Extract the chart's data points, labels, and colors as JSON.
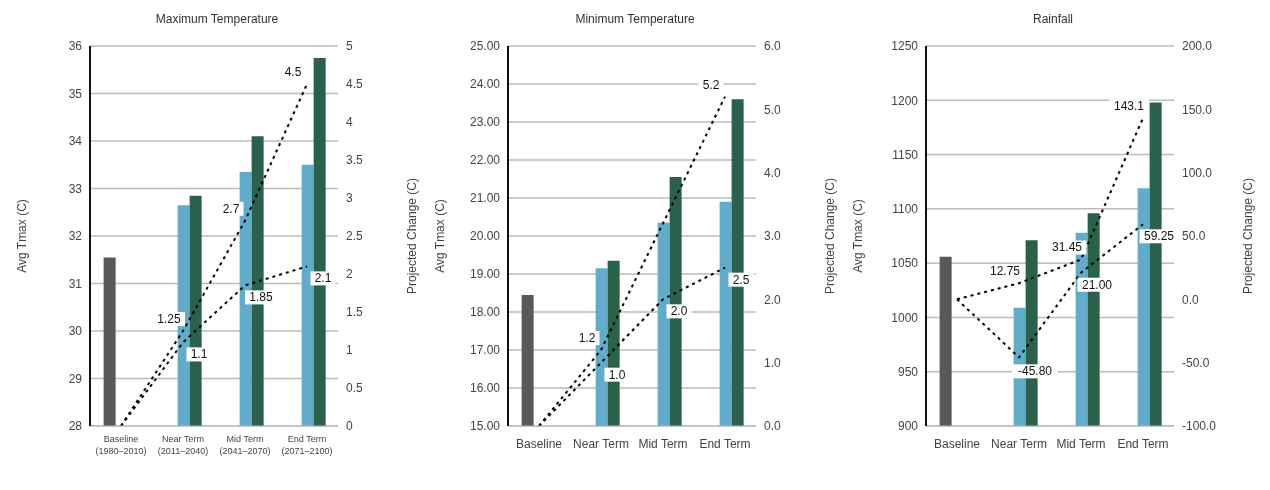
{
  "chart_data": [
    {
      "type": "bar",
      "title": "Maximum Temperature",
      "ylabel": "Avg Tmax (C)",
      "y2label": "Projected Change (C)",
      "categories": [
        "Baseline\n(1980–2010)",
        "Near Term\n(2011–2040)",
        "Mid Term\n(2041–2070)",
        "End Term\n(2071–2100)"
      ],
      "ylim": [
        28,
        36
      ],
      "yticks": [
        28,
        29,
        30,
        31,
        32,
        33,
        34,
        35,
        36
      ],
      "y2lim": [
        0,
        5
      ],
      "y2ticks": [
        0,
        0.5,
        1,
        1.5,
        2,
        2.5,
        3,
        3.5,
        4,
        4.5,
        5
      ],
      "grid": "y",
      "legend": false,
      "marker": "none",
      "line_style": "dashed",
      "series": [
        {
          "color": "#595959",
          "values": [
            31.55,
            null,
            null,
            null
          ]
        },
        {
          "color": "#62abc9",
          "values": [
            null,
            32.65,
            33.35,
            33.5
          ]
        },
        {
          "color": "#2b614a",
          "values": [
            null,
            32.85,
            34.1,
            35.75
          ]
        },
        {
          "type": "line",
          "axis": "y2",
          "color": "#000000",
          "values": [
            0,
            1.25,
            2.7,
            4.5
          ],
          "value_labels": [
            null,
            "1.25",
            "2.7",
            "4.5"
          ]
        },
        {
          "type": "line",
          "axis": "y2",
          "color": "#000000",
          "values": [
            0,
            1.1,
            1.85,
            2.1
          ],
          "value_labels": [
            null,
            "1.1",
            "1.85",
            "2.1"
          ]
        }
      ]
    },
    {
      "type": "bar",
      "title": "Minimum Temperature",
      "ylabel": "Avg Tmax (C)",
      "y2label": "Projected Change (C)",
      "categories": [
        "Baseline",
        "Near Term",
        "Mid Term",
        "End Term"
      ],
      "ylim": [
        15,
        25
      ],
      "yticks": [
        {
          "value": 15,
          "label": "15.00"
        },
        {
          "value": 16,
          "label": "16.00"
        },
        {
          "value": 17,
          "label": "17.00"
        },
        {
          "value": 18,
          "label": "18.00"
        },
        {
          "value": 19,
          "label": "19.00"
        },
        {
          "value": 20,
          "label": "20.00"
        },
        {
          "value": 21,
          "label": "21.00"
        },
        {
          "value": 22,
          "label": "22.00"
        },
        {
          "value": 23,
          "label": "23.00"
        },
        {
          "value": 24,
          "label": "24.00"
        },
        {
          "value": 25,
          "label": "25.00"
        }
      ],
      "y2lim": [
        0,
        6
      ],
      "y2ticks": [
        {
          "value": 0,
          "label": "0.0"
        },
        {
          "value": 1,
          "label": "1.0"
        },
        {
          "value": 2,
          "label": "2.0"
        },
        {
          "value": 3,
          "label": "3.0"
        },
        {
          "value": 4,
          "label": "4.0"
        },
        {
          "value": 5,
          "label": "5.0"
        },
        {
          "value": 6,
          "label": "6.0"
        }
      ],
      "grid": "y",
      "legend": false,
      "marker": "none",
      "line_style": "dashed",
      "series": [
        {
          "color": "#595959",
          "values": [
            18.45,
            null,
            null,
            null
          ]
        },
        {
          "color": "#62abc9",
          "values": [
            null,
            19.15,
            20.35,
            20.9
          ]
        },
        {
          "color": "#2b614a",
          "values": [
            null,
            19.35,
            21.55,
            23.6
          ]
        },
        {
          "type": "line",
          "axis": "y2",
          "color": "#000000",
          "values": [
            0,
            1.2,
            3.2,
            5.2
          ],
          "value_labels": [
            null,
            "1.2",
            null,
            "5.2"
          ]
        },
        {
          "type": "line",
          "axis": "y2",
          "color": "#000000",
          "values": [
            0,
            1.0,
            2.0,
            2.5
          ],
          "value_labels": [
            null,
            "1.0",
            "2.0",
            "2.5"
          ]
        }
      ]
    },
    {
      "type": "bar",
      "title": "Rainfall",
      "ylabel": "Avg Tmax (C)",
      "y2label": "Projected Change (C)",
      "categories": [
        "Baseline",
        "Near Term",
        "Mid Term",
        "End Term"
      ],
      "ylim": [
        900,
        1250
      ],
      "yticks": [
        900,
        950,
        1000,
        1050,
        1100,
        1150,
        1200,
        1250
      ],
      "y2lim": [
        -100,
        200
      ],
      "y2ticks": [
        {
          "value": -100,
          "label": "-100.0"
        },
        {
          "value": -50,
          "label": "-50.0"
        },
        {
          "value": 0,
          "label": "0.0"
        },
        {
          "value": 50,
          "label": "50.0"
        },
        {
          "value": 100,
          "label": "100.0"
        },
        {
          "value": 150,
          "label": "150.0"
        },
        {
          "value": 200,
          "label": "200.0"
        }
      ],
      "grid": "y",
      "legend": false,
      "marker": "none",
      "line_style": "dashed",
      "series": [
        {
          "color": "#595959",
          "values": [
            1056,
            null,
            null,
            null
          ]
        },
        {
          "color": "#62abc9",
          "values": [
            null,
            1009,
            1078,
            1119
          ]
        },
        {
          "color": "#2b614a",
          "values": [
            null,
            1071,
            1096,
            1198
          ]
        },
        {
          "type": "line",
          "axis": "y2",
          "color": "#000000",
          "values": [
            0,
            12.75,
            31.45,
            143.1
          ],
          "value_labels": [
            null,
            "12.75",
            "31.45",
            "143.1"
          ]
        },
        {
          "type": "line",
          "axis": "y2",
          "color": "#000000",
          "values": [
            0,
            -45.8,
            21.0,
            59.25
          ],
          "value_labels": [
            null,
            "-45.80",
            "21.00",
            "59.25"
          ]
        }
      ]
    }
  ]
}
